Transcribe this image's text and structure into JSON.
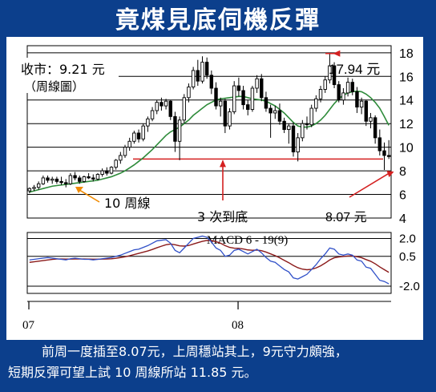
{
  "banner": {
    "title": "竟煤見底伺機反彈"
  },
  "caption": {
    "line1": "前周一度插至8.07元，上周穩站其上，9元守力頗強，",
    "line2": "短期反彈可望上試 10 周線所站 11.85 元。"
  },
  "colors": {
    "background": "#0c3f8c",
    "ma_line": "#2e8b3a",
    "macd_line": "#3050c8",
    "signal_line": "#8b1a1a",
    "annotation": "#d42020",
    "support_line": "#d42020"
  },
  "chart_data": [
    {
      "type": "candlestick",
      "title": "",
      "yticks": [
        4,
        6,
        8,
        10,
        12,
        14,
        16,
        18
      ],
      "ylim": [
        4,
        18.6
      ],
      "xticks": [
        "07",
        "08"
      ],
      "grid": true,
      "support_level": 9.0,
      "labels": {
        "close_line1": "收市：9.21 元",
        "close_line2": "（周線圖）",
        "high": "17.94 元",
        "low": "8.07 元",
        "ma": "10 周線",
        "triple_bottom": "3 次到底"
      },
      "series": [
        {
          "name": "price",
          "candles": [
            [
              6.3,
              6.6,
              6.1,
              6.5
            ],
            [
              6.5,
              6.8,
              6.3,
              6.6
            ],
            [
              6.6,
              7.1,
              6.4,
              6.9
            ],
            [
              6.9,
              7.6,
              6.8,
              7.4
            ],
            [
              7.4,
              7.6,
              7.0,
              7.2
            ],
            [
              7.2,
              7.5,
              6.9,
              7.3
            ],
            [
              7.3,
              7.5,
              6.9,
              7.1
            ],
            [
              7.1,
              7.5,
              6.8,
              7.0
            ],
            [
              7.0,
              7.3,
              6.6,
              6.9
            ],
            [
              6.9,
              7.8,
              6.8,
              7.6
            ],
            [
              7.6,
              7.9,
              7.2,
              7.4
            ],
            [
              7.4,
              7.6,
              6.9,
              7.1
            ],
            [
              7.1,
              7.6,
              7.0,
              7.5
            ],
            [
              7.5,
              7.8,
              7.3,
              7.4
            ],
            [
              7.4,
              7.7,
              7.1,
              7.3
            ],
            [
              7.3,
              7.8,
              7.2,
              7.7
            ],
            [
              7.7,
              8.2,
              7.5,
              8.0
            ],
            [
              8.0,
              8.3,
              7.6,
              7.8
            ],
            [
              7.8,
              8.4,
              7.7,
              8.3
            ],
            [
              8.3,
              9.0,
              8.1,
              8.9
            ],
            [
              8.9,
              9.6,
              8.6,
              9.3
            ],
            [
              9.3,
              10.2,
              9.1,
              10.0
            ],
            [
              10.0,
              10.8,
              9.7,
              10.5
            ],
            [
              10.5,
              11.4,
              10.3,
              11.2
            ],
            [
              11.2,
              11.5,
              10.4,
              10.7
            ],
            [
              10.7,
              12.0,
              10.5,
              11.8
            ],
            [
              11.8,
              12.6,
              11.3,
              12.4
            ],
            [
              12.4,
              13.4,
              12.2,
              13.1
            ],
            [
              13.1,
              14.0,
              12.8,
              13.8
            ],
            [
              13.8,
              14.2,
              13.1,
              13.5
            ],
            [
              13.5,
              14.1,
              13.2,
              13.9
            ],
            [
              13.9,
              14.0,
              12.3,
              12.6
            ],
            [
              12.6,
              13.0,
              9.6,
              10.5
            ],
            [
              10.5,
              12.6,
              8.9,
              12.3
            ],
            [
              12.3,
              14.5,
              12.0,
              14.2
            ],
            [
              14.2,
              15.4,
              13.8,
              15.1
            ],
            [
              15.1,
              16.8,
              14.9,
              16.5
            ],
            [
              16.5,
              17.4,
              15.2,
              15.6
            ],
            [
              15.6,
              17.7,
              15.4,
              17.2
            ],
            [
              17.2,
              17.6,
              15.8,
              16.1
            ],
            [
              16.1,
              16.5,
              14.5,
              15.0
            ],
            [
              15.0,
              15.5,
              13.2,
              13.5
            ],
            [
              13.5,
              14.2,
              12.6,
              13.9
            ],
            [
              13.9,
              14.1,
              11.2,
              11.8
            ],
            [
              11.8,
              13.3,
              11.5,
              13.0
            ],
            [
              13.0,
              15.6,
              12.8,
              15.2
            ],
            [
              15.2,
              15.9,
              14.3,
              14.8
            ],
            [
              14.8,
              15.2,
              13.2,
              13.6
            ],
            [
              13.6,
              14.0,
              12.7,
              13.2
            ],
            [
              13.2,
              15.2,
              13.0,
              15.0
            ],
            [
              15.0,
              16.1,
              14.6,
              15.8
            ],
            [
              15.8,
              16.2,
              13.9,
              14.2
            ],
            [
              14.2,
              14.7,
              13.0,
              13.3
            ],
            [
              13.3,
              13.6,
              10.8,
              12.9
            ],
            [
              12.9,
              13.5,
              12.4,
              13.1
            ],
            [
              13.1,
              13.7,
              11.9,
              12.2
            ],
            [
              12.2,
              12.5,
              11.2,
              11.5
            ],
            [
              11.5,
              12.0,
              10.3,
              11.8
            ],
            [
              11.8,
              12.1,
              9.2,
              9.6
            ],
            [
              9.6,
              11.2,
              8.8,
              10.8
            ],
            [
              10.8,
              12.3,
              10.5,
              12.0
            ],
            [
              12.0,
              12.6,
              11.5,
              11.9
            ],
            [
              11.9,
              13.6,
              11.7,
              13.3
            ],
            [
              13.3,
              14.4,
              13.0,
              14.1
            ],
            [
              14.1,
              15.2,
              13.8,
              14.9
            ],
            [
              14.9,
              16.0,
              14.6,
              15.7
            ],
            [
              15.7,
              17.94,
              15.4,
              16.9
            ],
            [
              16.9,
              17.2,
              15.0,
              15.3
            ],
            [
              15.3,
              15.6,
              13.8,
              14.0
            ],
            [
              14.0,
              15.0,
              13.6,
              14.6
            ],
            [
              14.6,
              15.9,
              14.3,
              15.5
            ],
            [
              15.5,
              15.8,
              14.4,
              14.7
            ],
            [
              14.7,
              15.1,
              12.9,
              13.4
            ],
            [
              13.4,
              14.2,
              12.8,
              13.9
            ],
            [
              13.9,
              14.0,
              11.8,
              12.2
            ],
            [
              12.2,
              12.9,
              11.6,
              12.5
            ],
            [
              12.5,
              12.7,
              10.3,
              10.8
            ],
            [
              10.8,
              11.5,
              9.3,
              9.7
            ],
            [
              9.7,
              10.4,
              8.07,
              9.3
            ],
            [
              9.3,
              10.6,
              9.0,
              9.21
            ]
          ]
        },
        {
          "name": "ma10",
          "values": [
            6.2,
            6.3,
            6.4,
            6.5,
            6.6,
            6.7,
            6.75,
            6.8,
            6.85,
            6.9,
            6.95,
            7.0,
            7.05,
            7.1,
            7.15,
            7.2,
            7.3,
            7.4,
            7.5,
            7.65,
            7.8,
            8.0,
            8.25,
            8.5,
            8.8,
            9.1,
            9.45,
            9.8,
            10.2,
            10.6,
            11.0,
            11.3,
            11.5,
            11.7,
            12.0,
            12.3,
            12.7,
            13.0,
            13.3,
            13.6,
            13.8,
            14.0,
            14.1,
            14.15,
            14.2,
            14.25,
            14.3,
            14.3,
            14.2,
            14.1,
            14.05,
            14.0,
            13.9,
            13.7,
            13.5,
            13.2,
            12.9,
            12.5,
            12.1,
            11.8,
            11.7,
            11.7,
            11.8,
            12.0,
            12.3,
            12.7,
            13.2,
            13.7,
            14.1,
            14.4,
            14.6,
            14.7,
            14.75,
            14.7,
            14.5,
            14.2,
            13.8,
            13.3,
            12.6,
            11.85
          ]
        }
      ]
    },
    {
      "type": "line",
      "title": "MACD 6 - 19(9)",
      "yticks": [
        2.0,
        0.5,
        -2.0
      ],
      "ylim": [
        -2.6,
        2.5
      ],
      "series": [
        {
          "name": "macd",
          "values": [
            0.2,
            0.25,
            0.3,
            0.35,
            0.4,
            0.35,
            0.3,
            0.25,
            0.2,
            0.3,
            0.35,
            0.3,
            0.25,
            0.25,
            0.2,
            0.25,
            0.3,
            0.35,
            0.4,
            0.5,
            0.6,
            0.75,
            0.9,
            1.05,
            1.1,
            1.25,
            1.4,
            1.6,
            1.8,
            1.85,
            1.9,
            1.6,
            1.0,
            0.8,
            1.2,
            1.6,
            2.0,
            2.1,
            2.2,
            2.1,
            1.7,
            1.2,
            1.0,
            0.5,
            0.6,
            1.0,
            1.1,
            0.9,
            0.7,
            0.9,
            1.1,
            0.8,
            0.4,
            0.1,
            0.0,
            -0.3,
            -0.6,
            -0.8,
            -1.3,
            -1.4,
            -1.2,
            -1.0,
            -0.6,
            -0.2,
            0.3,
            0.7,
            1.2,
            1.1,
            0.7,
            0.6,
            0.7,
            0.6,
            0.2,
            0.1,
            -0.4,
            -0.5,
            -1.0,
            -1.5,
            -1.6,
            -1.8
          ]
        },
        {
          "name": "signal",
          "values": [
            0.0,
            0.05,
            0.1,
            0.15,
            0.2,
            0.25,
            0.28,
            0.28,
            0.27,
            0.27,
            0.28,
            0.28,
            0.28,
            0.27,
            0.26,
            0.26,
            0.27,
            0.28,
            0.3,
            0.34,
            0.4,
            0.47,
            0.55,
            0.65,
            0.75,
            0.85,
            0.95,
            1.08,
            1.22,
            1.35,
            1.47,
            1.53,
            1.47,
            1.38,
            1.36,
            1.41,
            1.53,
            1.65,
            1.76,
            1.83,
            1.82,
            1.73,
            1.6,
            1.4,
            1.25,
            1.19,
            1.17,
            1.12,
            1.04,
            1.01,
            1.03,
            0.98,
            0.86,
            0.71,
            0.56,
            0.38,
            0.17,
            -0.03,
            -0.26,
            -0.45,
            -0.57,
            -0.62,
            -0.58,
            -0.47,
            -0.29,
            -0.06,
            0.2,
            0.38,
            0.45,
            0.49,
            0.53,
            0.54,
            0.47,
            0.39,
            0.23,
            0.09,
            -0.12,
            -0.38,
            -0.61,
            -0.84
          ]
        }
      ]
    }
  ]
}
